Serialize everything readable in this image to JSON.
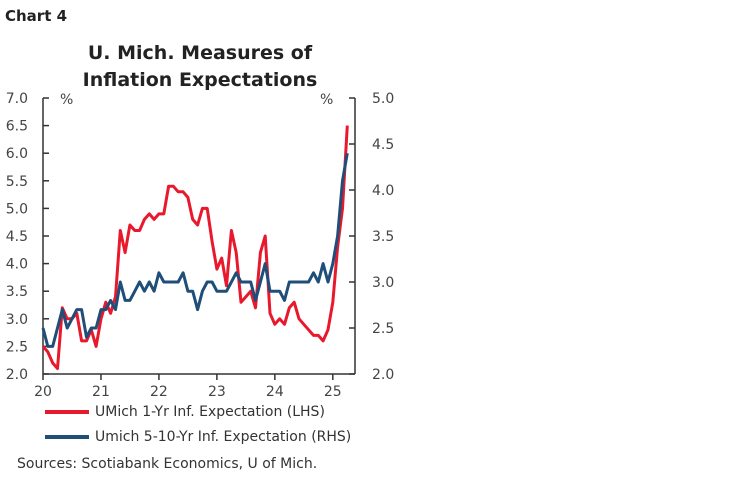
{
  "header": {
    "chart_label": "Chart 4"
  },
  "chart_data": {
    "type": "line",
    "title": "U. Mich. Measures of Inflation Expectations",
    "left_unit": "%",
    "right_unit": "%",
    "x_start": "2020-01",
    "frequency": "monthly",
    "x_ticks": [
      "20",
      "21",
      "22",
      "23",
      "24",
      "25"
    ],
    "ylim_left": [
      2.0,
      7.0
    ],
    "yticks_left": [
      "2.0",
      "2.5",
      "3.0",
      "3.5",
      "4.0",
      "4.5",
      "5.0",
      "5.5",
      "6.0",
      "6.5",
      "7.0"
    ],
    "ylim_right": [
      2.0,
      5.0
    ],
    "yticks_right": [
      "2.0",
      "2.5",
      "3.0",
      "3.5",
      "4.0",
      "4.5",
      "5.0"
    ],
    "grid": false,
    "legend_placement": "bottom-left",
    "series": [
      {
        "name": "UMich 1-Yr Inf. Expectation (LHS)",
        "axis": "left",
        "color": "#e8192c",
        "values": [
          2.5,
          2.4,
          2.2,
          2.1,
          3.2,
          3.0,
          3.0,
          3.1,
          2.6,
          2.6,
          2.8,
          2.5,
          3.0,
          3.3,
          3.1,
          3.4,
          4.6,
          4.2,
          4.7,
          4.6,
          4.6,
          4.8,
          4.9,
          4.8,
          4.9,
          4.9,
          5.4,
          5.4,
          5.3,
          5.3,
          5.2,
          4.8,
          4.7,
          5.0,
          5.0,
          4.4,
          3.9,
          4.1,
          3.6,
          4.6,
          4.2,
          3.3,
          3.4,
          3.5,
          3.2,
          4.2,
          4.5,
          3.1,
          2.9,
          3.0,
          2.9,
          3.2,
          3.3,
          3.0,
          2.9,
          2.8,
          2.7,
          2.7,
          2.6,
          2.8,
          3.3,
          4.3,
          5.0,
          6.5
        ]
      },
      {
        "name": "Umich 5-10-Yr Inf. Expectation (RHS)",
        "axis": "right",
        "color": "#1f4e79",
        "values": [
          2.5,
          2.3,
          2.3,
          2.5,
          2.7,
          2.5,
          2.6,
          2.7,
          2.7,
          2.4,
          2.5,
          2.5,
          2.7,
          2.7,
          2.8,
          2.7,
          3.0,
          2.8,
          2.8,
          2.9,
          3.0,
          2.9,
          3.0,
          2.9,
          3.1,
          3.0,
          3.0,
          3.0,
          3.0,
          3.1,
          2.9,
          2.9,
          2.7,
          2.9,
          3.0,
          3.0,
          2.9,
          2.9,
          2.9,
          3.0,
          3.1,
          3.0,
          3.0,
          3.0,
          2.8,
          3.0,
          3.2,
          2.9,
          2.9,
          2.9,
          2.8,
          3.0,
          3.0,
          3.0,
          3.0,
          3.0,
          3.1,
          3.0,
          3.2,
          3.0,
          3.2,
          3.5,
          4.1,
          4.4
        ]
      }
    ]
  },
  "footer": {
    "source": "Sources: Scotiabank Economics, U of Mich."
  }
}
